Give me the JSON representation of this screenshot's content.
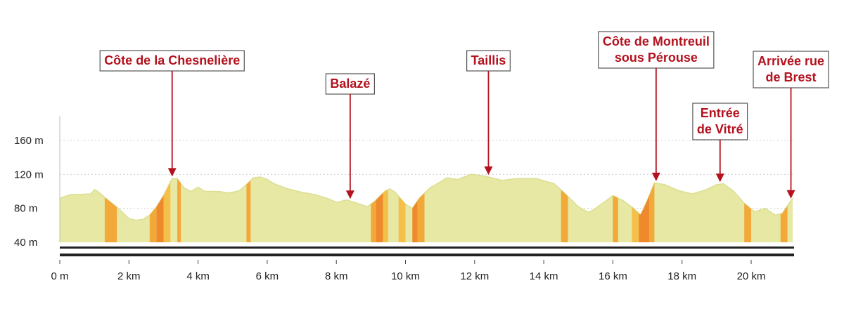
{
  "chart_data": {
    "type": "area",
    "x_unit": "km",
    "y_unit": "m",
    "xlim": [
      0,
      21.2
    ],
    "ylim": [
      32,
      200
    ],
    "x_ticks": [
      {
        "value": 0,
        "label": "0 m"
      },
      {
        "value": 2,
        "label": "2 km"
      },
      {
        "value": 4,
        "label": "4 km"
      },
      {
        "value": 6,
        "label": "6 km"
      },
      {
        "value": 8,
        "label": "8 km"
      },
      {
        "value": 10,
        "label": "10 km"
      },
      {
        "value": 12,
        "label": "12 km"
      },
      {
        "value": 14,
        "label": "14 km"
      },
      {
        "value": 16,
        "label": "16 km"
      },
      {
        "value": 18,
        "label": "18 km"
      },
      {
        "value": 20,
        "label": "20 km"
      }
    ],
    "y_ticks": [
      {
        "value": 40,
        "label": "40 m"
      },
      {
        "value": 80,
        "label": "80 m"
      },
      {
        "value": 120,
        "label": "120 m"
      },
      {
        "value": 160,
        "label": "160 m"
      }
    ],
    "grid": "horizontal dotted",
    "colors": {
      "fill": "#e6e8a3",
      "outline": "#dcdf92",
      "climb_light": "#f5c04a",
      "climb_medium": "#f3a83a",
      "climb_steep": "#ee8a2c",
      "annotation": "#b3121e",
      "axis": "#222222"
    },
    "profile": [
      [
        0,
        92
      ],
      [
        0.3,
        96
      ],
      [
        0.9,
        97
      ],
      [
        1.0,
        102
      ],
      [
        1.1,
        100
      ],
      [
        1.3,
        93
      ],
      [
        1.6,
        83
      ],
      [
        1.8,
        76
      ],
      [
        2.0,
        68
      ],
      [
        2.2,
        66
      ],
      [
        2.4,
        67
      ],
      [
        2.6,
        72
      ],
      [
        2.8,
        82
      ],
      [
        3.0,
        95
      ],
      [
        3.15,
        107
      ],
      [
        3.25,
        115
      ],
      [
        3.4,
        115
      ],
      [
        3.6,
        104
      ],
      [
        3.8,
        100
      ],
      [
        4.0,
        105
      ],
      [
        4.2,
        100
      ],
      [
        4.6,
        100
      ],
      [
        4.9,
        98
      ],
      [
        5.2,
        101
      ],
      [
        5.4,
        108
      ],
      [
        5.6,
        116
      ],
      [
        5.8,
        117
      ],
      [
        6.0,
        114
      ],
      [
        6.2,
        109
      ],
      [
        6.6,
        103
      ],
      [
        7.0,
        99
      ],
      [
        7.4,
        96
      ],
      [
        7.8,
        91
      ],
      [
        8.0,
        87
      ],
      [
        8.3,
        90
      ],
      [
        8.6,
        86
      ],
      [
        8.9,
        82
      ],
      [
        9.1,
        88
      ],
      [
        9.4,
        100
      ],
      [
        9.55,
        103
      ],
      [
        9.7,
        99
      ],
      [
        10.0,
        85
      ],
      [
        10.2,
        80
      ],
      [
        10.4,
        92
      ],
      [
        10.7,
        104
      ],
      [
        11.0,
        111
      ],
      [
        11.2,
        116
      ],
      [
        11.5,
        114
      ],
      [
        11.9,
        120
      ],
      [
        12.3,
        118
      ],
      [
        12.8,
        113
      ],
      [
        13.2,
        115
      ],
      [
        13.8,
        115
      ],
      [
        14.3,
        109
      ],
      [
        14.6,
        98
      ],
      [
        15.0,
        82
      ],
      [
        15.3,
        75
      ],
      [
        15.5,
        80
      ],
      [
        15.8,
        89
      ],
      [
        16.0,
        95
      ],
      [
        16.3,
        89
      ],
      [
        16.6,
        80
      ],
      [
        16.8,
        72
      ],
      [
        17.0,
        90
      ],
      [
        17.2,
        110
      ],
      [
        17.5,
        108
      ],
      [
        17.9,
        101
      ],
      [
        18.3,
        97
      ],
      [
        18.7,
        102
      ],
      [
        19.0,
        108
      ],
      [
        19.2,
        109
      ],
      [
        19.5,
        100
      ],
      [
        19.8,
        86
      ],
      [
        20.1,
        76
      ],
      [
        20.4,
        80
      ],
      [
        20.7,
        72
      ],
      [
        20.9,
        74
      ],
      [
        21.2,
        92
      ]
    ],
    "climbs": [
      {
        "x0": 1.3,
        "x1": 1.65,
        "level": "medium"
      },
      {
        "x0": 2.6,
        "x1": 2.8,
        "level": "medium"
      },
      {
        "x0": 2.8,
        "x1": 3.0,
        "level": "steep"
      },
      {
        "x0": 3.0,
        "x1": 3.2,
        "level": "light"
      },
      {
        "x0": 3.4,
        "x1": 3.5,
        "level": "medium"
      },
      {
        "x0": 5.4,
        "x1": 5.52,
        "level": "medium"
      },
      {
        "x0": 9.0,
        "x1": 9.15,
        "level": "medium"
      },
      {
        "x0": 9.15,
        "x1": 9.35,
        "level": "steep"
      },
      {
        "x0": 9.35,
        "x1": 9.5,
        "level": "light"
      },
      {
        "x0": 9.8,
        "x1": 10.0,
        "level": "light"
      },
      {
        "x0": 10.2,
        "x1": 10.35,
        "level": "steep"
      },
      {
        "x0": 10.35,
        "x1": 10.55,
        "level": "medium"
      },
      {
        "x0": 14.5,
        "x1": 14.7,
        "level": "medium"
      },
      {
        "x0": 16.0,
        "x1": 16.15,
        "level": "medium"
      },
      {
        "x0": 16.55,
        "x1": 16.75,
        "level": "light"
      },
      {
        "x0": 16.75,
        "x1": 17.05,
        "level": "steep"
      },
      {
        "x0": 17.05,
        "x1": 17.2,
        "level": "medium"
      },
      {
        "x0": 19.8,
        "x1": 20.0,
        "level": "medium"
      },
      {
        "x0": 20.85,
        "x1": 21.05,
        "level": "medium"
      }
    ],
    "annotations": [
      {
        "lines": [
          "Côte de la Chesnelière"
        ],
        "x": 3.25
      },
      {
        "lines": [
          "Balazé"
        ],
        "x": 8.4
      },
      {
        "lines": [
          "Taillis"
        ],
        "x": 12.4
      },
      {
        "lines": [
          "Côte de Montreuil",
          "sous Pérouse"
        ],
        "x": 17.25
      },
      {
        "lines": [
          "Entrée",
          "de Vitré"
        ],
        "x": 19.1
      },
      {
        "lines": [
          "Arrivée rue",
          "de Brest"
        ],
        "x": 21.15
      }
    ]
  }
}
